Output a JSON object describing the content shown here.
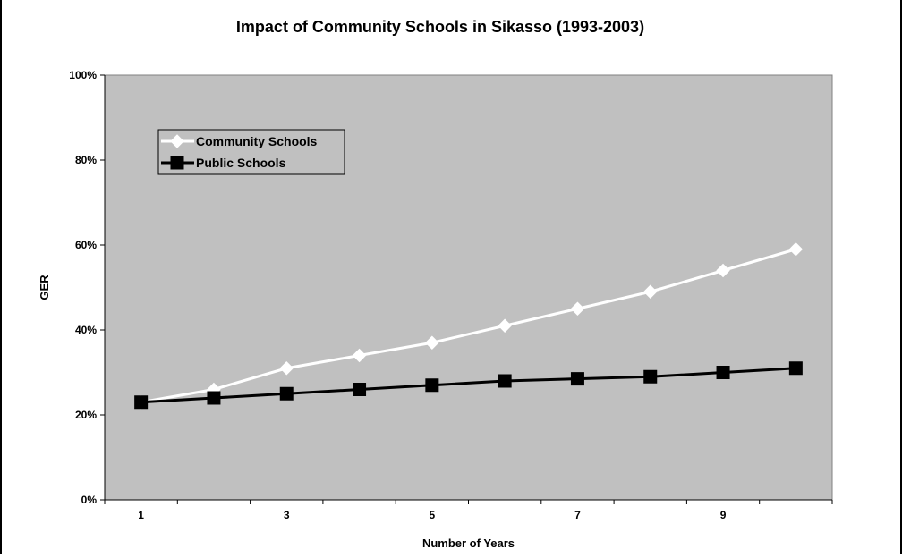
{
  "chart_data": {
    "type": "line",
    "title": "Impact of Community Schools in Sikasso (1993-2003)",
    "xlabel": "Number of Years",
    "ylabel": "GER",
    "x": [
      1,
      2,
      3,
      4,
      5,
      6,
      7,
      8,
      9,
      10
    ],
    "x_tick_labels": [
      "1",
      "3",
      "5",
      "7",
      "9"
    ],
    "y_tick_labels": [
      "0%",
      "20%",
      "40%",
      "60%",
      "80%",
      "100%"
    ],
    "ylim": [
      0,
      100
    ],
    "grid": false,
    "legend_position": "top-left",
    "plot_background": "#c0c0c0",
    "series": [
      {
        "name": "Community Schools",
        "color": "#ffffff",
        "marker": "diamond",
        "values": [
          23,
          26,
          31,
          34,
          37,
          41,
          45,
          49,
          54,
          59
        ]
      },
      {
        "name": "Public Schools",
        "color": "#000000",
        "marker": "square",
        "values": [
          23,
          24,
          25,
          26,
          27,
          28,
          28.5,
          29,
          30,
          31
        ]
      }
    ]
  }
}
